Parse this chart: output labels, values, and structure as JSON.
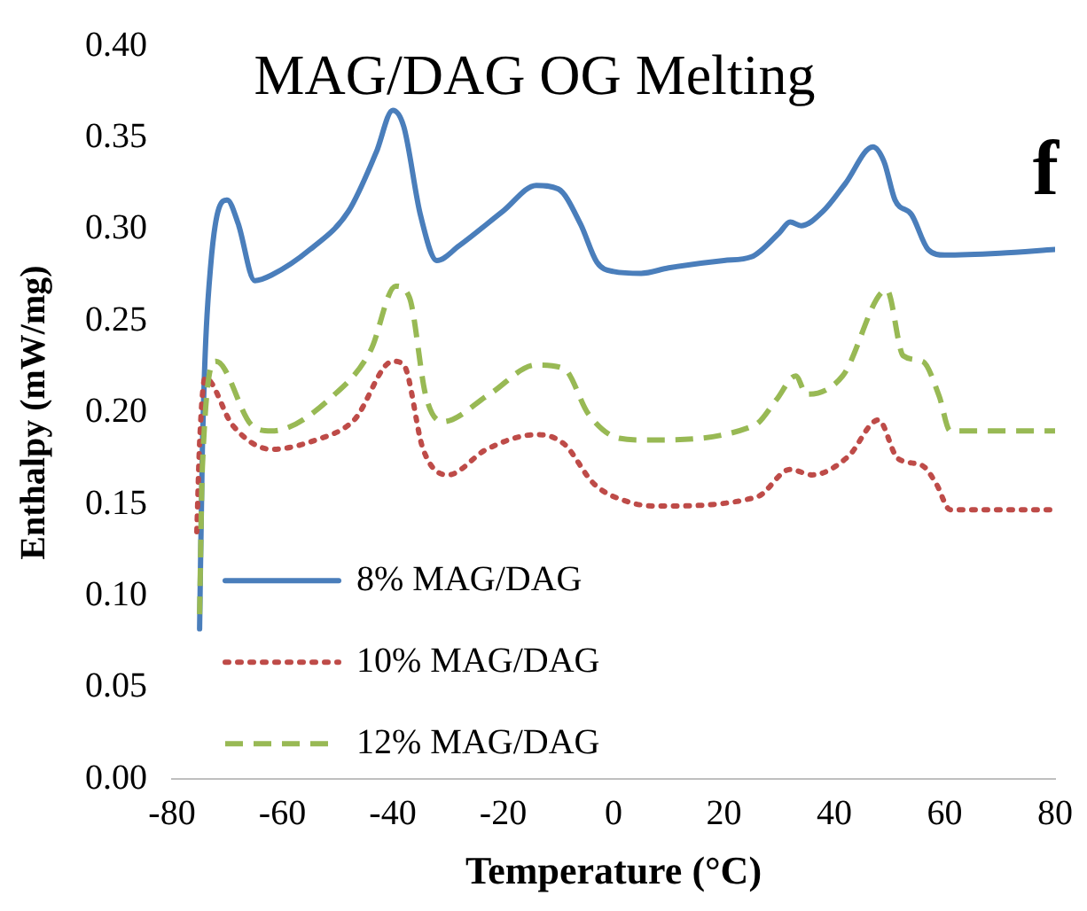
{
  "chart_data": {
    "type": "line",
    "title": "MAG/DAG OG Melting",
    "xlabel": "Temperature (°C)",
    "ylabel": "Enthalpy (mW/mg)",
    "annotations": [
      "f"
    ],
    "xlim": [
      -80,
      80
    ],
    "xticks": [
      -80,
      -60,
      -40,
      -20,
      0,
      20,
      40,
      60,
      80
    ],
    "ylim": [
      0,
      0.4
    ],
    "yticks": [
      {
        "value": 0,
        "label": "0.00"
      },
      {
        "value": 0.05,
        "label": "0.05"
      },
      {
        "value": 0.1,
        "label": "0.10"
      },
      {
        "value": 0.15,
        "label": "0.15"
      },
      {
        "value": 0.2,
        "label": "0.20"
      },
      {
        "value": 0.25,
        "label": "0.25"
      },
      {
        "value": 0.3,
        "label": "0.30"
      },
      {
        "value": 0.35,
        "label": "0.35"
      },
      {
        "value": 0.4,
        "label": "0.40"
      }
    ],
    "grid": false,
    "legend": "bottom left",
    "marker": "none",
    "series": [
      {
        "name": "8% MAG/DAG",
        "color": "#4a7ebb",
        "line_style": "solid",
        "x": [
          -75,
          -74.5,
          -73,
          -70,
          -68,
          -65,
          -62,
          -55,
          -48,
          -43,
          -40,
          -38,
          -35,
          -32,
          -28,
          -20,
          -14,
          -10,
          -6,
          -3,
          0,
          5,
          10,
          20,
          25,
          30,
          32,
          34,
          38,
          42,
          47,
          49,
          51,
          54,
          57,
          60,
          70,
          80
        ],
        "values": [
          0.082,
          0.18,
          0.28,
          0.316,
          0.303,
          0.272,
          0.275,
          0.289,
          0.31,
          0.342,
          0.365,
          0.356,
          0.308,
          0.283,
          0.291,
          0.31,
          0.324,
          0.322,
          0.303,
          0.282,
          0.277,
          0.276,
          0.279,
          0.283,
          0.285,
          0.298,
          0.304,
          0.302,
          0.31,
          0.325,
          0.345,
          0.337,
          0.316,
          0.308,
          0.289,
          0.286,
          0.287,
          0.289
        ]
      },
      {
        "name": "10% MAG/DAG",
        "color": "#be4b48",
        "line_style": "dotted",
        "x": [
          -75.5,
          -75,
          -74,
          -69,
          -62,
          -54,
          -47,
          -40,
          -38,
          -34.5,
          -30,
          -23,
          -14,
          -9,
          -3.5,
          3,
          8,
          26,
          32,
          36,
          42.5,
          48,
          51.5,
          56,
          58.5,
          61,
          80
        ],
        "values": [
          0.135,
          0.183,
          0.219,
          0.193,
          0.18,
          0.185,
          0.196,
          0.228,
          0.226,
          0.18,
          0.166,
          0.18,
          0.188,
          0.183,
          0.161,
          0.151,
          0.149,
          0.154,
          0.169,
          0.166,
          0.176,
          0.196,
          0.175,
          0.171,
          0.161,
          0.147,
          0.147
        ]
      },
      {
        "name": "12% MAG/DAG",
        "color": "#98b954",
        "line_style": "dashed",
        "x": [
          -75,
          -74.5,
          -72,
          -65.5,
          -62,
          -50.5,
          -44,
          -39.5,
          -37,
          -34,
          -31,
          -22.5,
          -14,
          -9,
          -4.5,
          1,
          6,
          25.5,
          29.5,
          33,
          35,
          41.5,
          49.5,
          52.5,
          56,
          59,
          61,
          80
        ],
        "values": [
          0.09,
          0.17,
          0.228,
          0.193,
          0.19,
          0.21,
          0.234,
          0.269,
          0.263,
          0.209,
          0.195,
          0.21,
          0.226,
          0.224,
          0.199,
          0.186,
          0.185,
          0.193,
          0.207,
          0.22,
          0.21,
          0.22,
          0.267,
          0.231,
          0.228,
          0.209,
          0.19,
          0.19
        ]
      }
    ]
  }
}
